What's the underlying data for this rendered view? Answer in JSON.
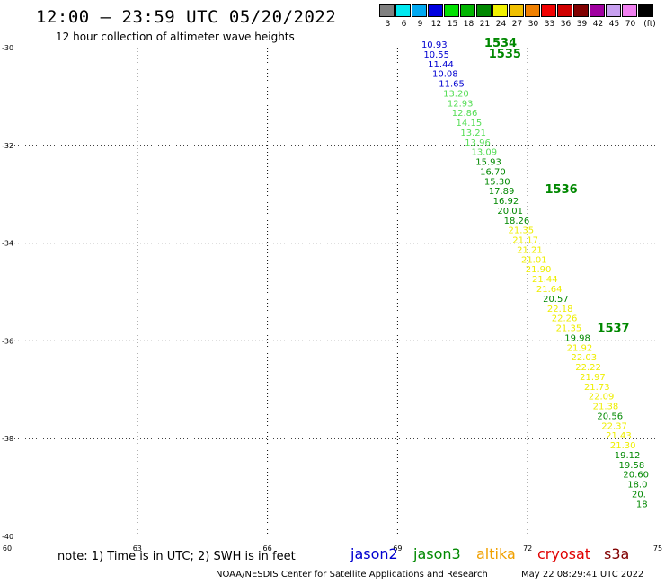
{
  "header": {
    "title": "12:00 – 23:59 UTC 05/20/2022",
    "subtitle": "12 hour collection of altimeter wave heights"
  },
  "colorbar": {
    "unit": "(ft)",
    "swatches": [
      {
        "label": "3",
        "color": "#808080"
      },
      {
        "label": "6",
        "color": "#00e8f0"
      },
      {
        "label": "9",
        "color": "#00a8f0"
      },
      {
        "label": "12",
        "color": "#0000e0"
      },
      {
        "label": "15",
        "color": "#00e000"
      },
      {
        "label": "18",
        "color": "#00b400"
      },
      {
        "label": "21",
        "color": "#008800"
      },
      {
        "label": "24",
        "color": "#f0f000"
      },
      {
        "label": "27",
        "color": "#f0c000"
      },
      {
        "label": "30",
        "color": "#f08000"
      },
      {
        "label": "33",
        "color": "#f00000"
      },
      {
        "label": "36",
        "color": "#d00000"
      },
      {
        "label": "39",
        "color": "#800000"
      },
      {
        "label": "42",
        "color": "#a000a0"
      },
      {
        "label": "45",
        "color": "#c8a0f0"
      },
      {
        "label": "70",
        "color": "#f080f0"
      },
      {
        "label": "",
        "color": "#000000"
      }
    ]
  },
  "footer": {
    "note": "note:  1) Time is in UTC;  2) SWH is in feet",
    "credit": "NOAA/NESDIS Center for Satellite Applications and Research",
    "timestamp": "May 22 08:29:41 UTC 2022",
    "satellites": [
      {
        "name": "jason2",
        "color": "#0000d0"
      },
      {
        "name": "jason3",
        "color": "#008800"
      },
      {
        "name": "altika",
        "color": "#f0a000"
      },
      {
        "name": "cryosat",
        "color": "#e00000"
      },
      {
        "name": "s3a",
        "color": "#800000"
      }
    ]
  },
  "chart_data": {
    "type": "scatter",
    "xlim": [
      60,
      75
    ],
    "ylim": [
      -40,
      -30
    ],
    "x_ticks": [
      60,
      63,
      66,
      69,
      72,
      75
    ],
    "y_ticks": [
      -30,
      -32,
      -34,
      -36,
      -38,
      -40
    ],
    "grid": true,
    "colors": {
      "blue": "#0000d0",
      "lightgreen": "#55dd55",
      "green": "#008800",
      "yellow": "#eeee00"
    },
    "time_labels": [
      {
        "text": "1534",
        "lon": 71.0,
        "lat": -29.98
      },
      {
        "text": "1535",
        "lon": 71.1,
        "lat": -30.2
      },
      {
        "text": "1536",
        "lon": 72.4,
        "lat": -32.98
      },
      {
        "text": "1537",
        "lon": 73.6,
        "lat": -35.82
      }
    ],
    "points": [
      {
        "v": "10.93",
        "lon": 69.55,
        "lat": -30.0,
        "c": "blue"
      },
      {
        "v": "10.55",
        "lon": 69.6,
        "lat": -30.2,
        "c": "blue"
      },
      {
        "v": "11.44",
        "lon": 69.7,
        "lat": -30.4,
        "c": "blue"
      },
      {
        "v": "10.08",
        "lon": 69.8,
        "lat": -30.6,
        "c": "blue"
      },
      {
        "v": "11.65",
        "lon": 69.95,
        "lat": -30.8,
        "c": "blue"
      },
      {
        "v": "13.20",
        "lon": 70.05,
        "lat": -31.0,
        "c": "lightgreen"
      },
      {
        "v": "12.93",
        "lon": 70.15,
        "lat": -31.2,
        "c": "lightgreen"
      },
      {
        "v": "12.86",
        "lon": 70.25,
        "lat": -31.4,
        "c": "lightgreen"
      },
      {
        "v": "14.15",
        "lon": 70.35,
        "lat": -31.6,
        "c": "lightgreen"
      },
      {
        "v": "13.21",
        "lon": 70.45,
        "lat": -31.8,
        "c": "lightgreen"
      },
      {
        "v": "13.96",
        "lon": 70.55,
        "lat": -32.0,
        "c": "lightgreen"
      },
      {
        "v": "13.09",
        "lon": 70.7,
        "lat": -32.2,
        "c": "lightgreen"
      },
      {
        "v": "15.93",
        "lon": 70.8,
        "lat": -32.4,
        "c": "green"
      },
      {
        "v": "16.70",
        "lon": 70.9,
        "lat": -32.6,
        "c": "green"
      },
      {
        "v": "15.30",
        "lon": 71.0,
        "lat": -32.8,
        "c": "green"
      },
      {
        "v": "17.89",
        "lon": 71.1,
        "lat": -33.0,
        "c": "green"
      },
      {
        "v": "16.92",
        "lon": 71.2,
        "lat": -33.2,
        "c": "green"
      },
      {
        "v": "20.01",
        "lon": 71.3,
        "lat": -33.4,
        "c": "green"
      },
      {
        "v": "18.26",
        "lon": 71.45,
        "lat": -33.6,
        "c": "green"
      },
      {
        "v": "21.35",
        "lon": 71.55,
        "lat": -33.8,
        "c": "yellow"
      },
      {
        "v": "21.17",
        "lon": 71.65,
        "lat": -34.0,
        "c": "yellow"
      },
      {
        "v": "21.21",
        "lon": 71.75,
        "lat": -34.2,
        "c": "yellow"
      },
      {
        "v": "21.01",
        "lon": 71.85,
        "lat": -34.4,
        "c": "yellow"
      },
      {
        "v": "21.90",
        "lon": 71.95,
        "lat": -34.6,
        "c": "yellow"
      },
      {
        "v": "21.44",
        "lon": 72.1,
        "lat": -34.8,
        "c": "yellow"
      },
      {
        "v": "21.64",
        "lon": 72.2,
        "lat": -35.0,
        "c": "yellow"
      },
      {
        "v": "20.57",
        "lon": 72.35,
        "lat": -35.2,
        "c": "green"
      },
      {
        "v": "22.18",
        "lon": 72.45,
        "lat": -35.4,
        "c": "yellow"
      },
      {
        "v": "22.26",
        "lon": 72.55,
        "lat": -35.6,
        "c": "yellow"
      },
      {
        "v": "21.35",
        "lon": 72.65,
        "lat": -35.8,
        "c": "yellow"
      },
      {
        "v": "19.98",
        "lon": 72.85,
        "lat": -36.0,
        "c": "green"
      },
      {
        "v": "21.92",
        "lon": 72.9,
        "lat": -36.2,
        "c": "yellow"
      },
      {
        "v": "22.03",
        "lon": 73.0,
        "lat": -36.4,
        "c": "yellow"
      },
      {
        "v": "22.22",
        "lon": 73.1,
        "lat": -36.6,
        "c": "yellow"
      },
      {
        "v": "21.97",
        "lon": 73.2,
        "lat": -36.8,
        "c": "yellow"
      },
      {
        "v": "21.73",
        "lon": 73.3,
        "lat": -37.0,
        "c": "yellow"
      },
      {
        "v": "22.09",
        "lon": 73.4,
        "lat": -37.2,
        "c": "yellow"
      },
      {
        "v": "21.38",
        "lon": 73.5,
        "lat": -37.4,
        "c": "yellow"
      },
      {
        "v": "20.56",
        "lon": 73.6,
        "lat": -37.6,
        "c": "green"
      },
      {
        "v": "22.37",
        "lon": 73.7,
        "lat": -37.8,
        "c": "yellow"
      },
      {
        "v": "21.43",
        "lon": 73.8,
        "lat": -38.0,
        "c": "yellow"
      },
      {
        "v": "21.30",
        "lon": 73.9,
        "lat": -38.2,
        "c": "yellow"
      },
      {
        "v": "19.12",
        "lon": 74.0,
        "lat": -38.4,
        "c": "green"
      },
      {
        "v": "19.58",
        "lon": 74.1,
        "lat": -38.6,
        "c": "green"
      },
      {
        "v": "20.60",
        "lon": 74.2,
        "lat": -38.8,
        "c": "green"
      },
      {
        "v": "18.0",
        "lon": 74.3,
        "lat": -39.0,
        "c": "green"
      },
      {
        "v": "20.",
        "lon": 74.4,
        "lat": -39.2,
        "c": "green"
      },
      {
        "v": "18",
        "lon": 74.5,
        "lat": -39.4,
        "c": "green"
      }
    ]
  }
}
